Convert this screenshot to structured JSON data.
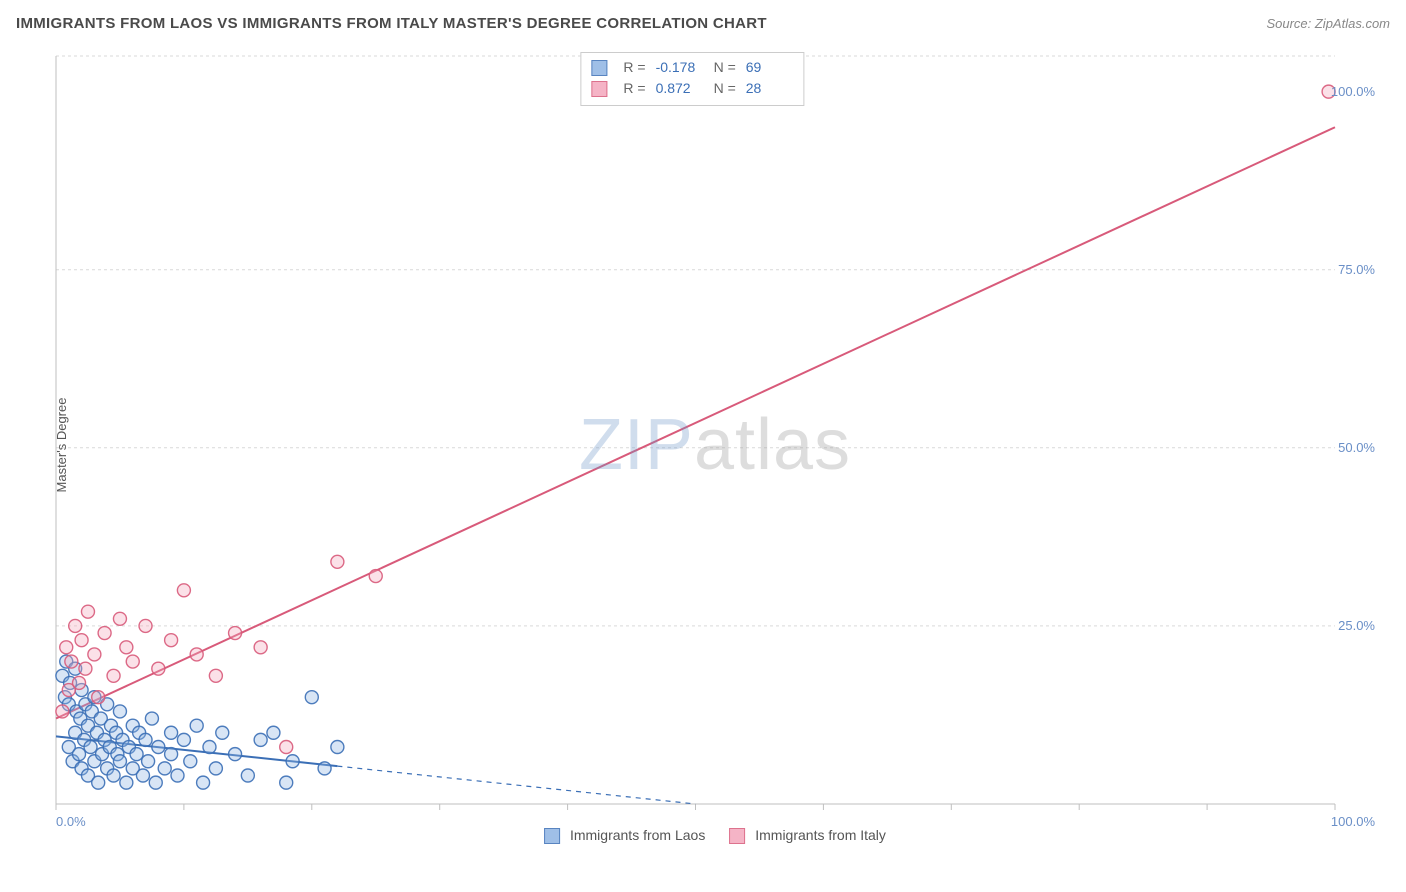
{
  "header": {
    "title": "IMMIGRANTS FROM LAOS VS IMMIGRANTS FROM ITALY MASTER'S DEGREE CORRELATION CHART",
    "source": "Source: ZipAtlas.com"
  },
  "watermark": {
    "part1": "ZIP",
    "part2": "atlas"
  },
  "y_axis": {
    "label": "Master's Degree"
  },
  "chart": {
    "type": "scatter",
    "xlim": [
      0,
      100
    ],
    "ylim": [
      0,
      105
    ],
    "x_ticks": [
      0,
      10,
      20,
      30,
      40,
      50,
      60,
      70,
      80,
      90,
      100
    ],
    "x_tick_labels": {
      "0": "0.0%",
      "100": "100.0%"
    },
    "y_gridlines": [
      25,
      50,
      75,
      105
    ],
    "y_tick_labels": {
      "25": "25.0%",
      "50": "50.0%",
      "75": "75.0%",
      "100": "100.0%"
    },
    "background_color": "#ffffff",
    "grid_color": "#d9d9d9",
    "axis_color": "#bfbfbf",
    "label_color": "#6a8fc7",
    "marker_radius": 6.5,
    "marker_stroke_width": 1.4,
    "marker_fill_opacity": 0.35,
    "trend_line_width": 2
  },
  "series": [
    {
      "id": "laos",
      "name": "Immigrants from Laos",
      "color_stroke": "#3b6fb6",
      "color_fill": "#8fb4e3",
      "R": "-0.178",
      "N": "69",
      "trend": {
        "x1": 0,
        "y1": 9.5,
        "x2": 50,
        "y2": 0,
        "dashed_from_x": 22
      },
      "points": [
        [
          0.5,
          18
        ],
        [
          0.7,
          15
        ],
        [
          0.8,
          20
        ],
        [
          1.0,
          14
        ],
        [
          1.0,
          8
        ],
        [
          1.1,
          17
        ],
        [
          1.3,
          6
        ],
        [
          1.5,
          19
        ],
        [
          1.5,
          10
        ],
        [
          1.6,
          13
        ],
        [
          1.8,
          7
        ],
        [
          1.9,
          12
        ],
        [
          2.0,
          16
        ],
        [
          2.0,
          5
        ],
        [
          2.2,
          9
        ],
        [
          2.3,
          14
        ],
        [
          2.5,
          11
        ],
        [
          2.5,
          4
        ],
        [
          2.7,
          8
        ],
        [
          2.8,
          13
        ],
        [
          3.0,
          6
        ],
        [
          3.0,
          15
        ],
        [
          3.2,
          10
        ],
        [
          3.3,
          3
        ],
        [
          3.5,
          12
        ],
        [
          3.6,
          7
        ],
        [
          3.8,
          9
        ],
        [
          4.0,
          5
        ],
        [
          4.0,
          14
        ],
        [
          4.2,
          8
        ],
        [
          4.3,
          11
        ],
        [
          4.5,
          4
        ],
        [
          4.7,
          10
        ],
        [
          4.8,
          7
        ],
        [
          5.0,
          13
        ],
        [
          5.0,
          6
        ],
        [
          5.2,
          9
        ],
        [
          5.5,
          3
        ],
        [
          5.7,
          8
        ],
        [
          6.0,
          11
        ],
        [
          6.0,
          5
        ],
        [
          6.3,
          7
        ],
        [
          6.5,
          10
        ],
        [
          6.8,
          4
        ],
        [
          7.0,
          9
        ],
        [
          7.2,
          6
        ],
        [
          7.5,
          12
        ],
        [
          7.8,
          3
        ],
        [
          8.0,
          8
        ],
        [
          8.5,
          5
        ],
        [
          9.0,
          10
        ],
        [
          9.0,
          7
        ],
        [
          9.5,
          4
        ],
        [
          10.0,
          9
        ],
        [
          10.5,
          6
        ],
        [
          11.0,
          11
        ],
        [
          11.5,
          3
        ],
        [
          12.0,
          8
        ],
        [
          12.5,
          5
        ],
        [
          13.0,
          10
        ],
        [
          14.0,
          7
        ],
        [
          15.0,
          4
        ],
        [
          16.0,
          9
        ],
        [
          17.0,
          10
        ],
        [
          18.0,
          3
        ],
        [
          18.5,
          6
        ],
        [
          20.0,
          15
        ],
        [
          21.0,
          5
        ],
        [
          22.0,
          8
        ]
      ]
    },
    {
      "id": "italy",
      "name": "Immigrants from Italy",
      "color_stroke": "#d85a7a",
      "color_fill": "#f4a8bd",
      "R": "0.872",
      "N": "28",
      "trend": {
        "x1": 0,
        "y1": 12,
        "x2": 100,
        "y2": 95,
        "dashed_from_x": 100
      },
      "points": [
        [
          0.5,
          13
        ],
        [
          0.8,
          22
        ],
        [
          1.0,
          16
        ],
        [
          1.2,
          20
        ],
        [
          1.5,
          25
        ],
        [
          1.8,
          17
        ],
        [
          2.0,
          23
        ],
        [
          2.3,
          19
        ],
        [
          2.5,
          27
        ],
        [
          3.0,
          21
        ],
        [
          3.3,
          15
        ],
        [
          3.8,
          24
        ],
        [
          4.5,
          18
        ],
        [
          5.0,
          26
        ],
        [
          5.5,
          22
        ],
        [
          6.0,
          20
        ],
        [
          7.0,
          25
        ],
        [
          8.0,
          19
        ],
        [
          9.0,
          23
        ],
        [
          10.0,
          30
        ],
        [
          11.0,
          21
        ],
        [
          12.5,
          18
        ],
        [
          14.0,
          24
        ],
        [
          16.0,
          22
        ],
        [
          18.0,
          8
        ],
        [
          22.0,
          34
        ],
        [
          25.0,
          32
        ],
        [
          99.5,
          100
        ]
      ]
    }
  ],
  "legend": {
    "laos_label": "Immigrants from Laos",
    "italy_label": "Immigrants from Italy"
  },
  "stat_box": {
    "r_label": "R =",
    "n_label": "N ="
  }
}
